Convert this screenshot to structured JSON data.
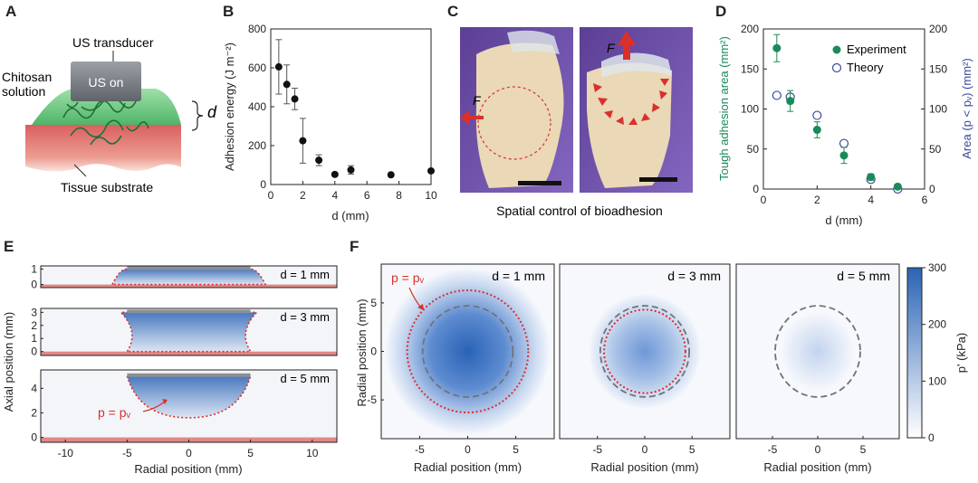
{
  "panels": {
    "a": "A",
    "b": "B",
    "c": "C",
    "d": "D",
    "e": "E",
    "f": "F"
  },
  "panel_a": {
    "transducer_label": "US transducer",
    "device_text": "US on",
    "solution_label_1": "Chitosan",
    "solution_label_2": "solution",
    "gap_label": "d",
    "substrate_label": "Tissue substrate",
    "colors": {
      "transducer": "#7b7f85",
      "gel": "#7dcf8d",
      "tissue": "#e16f6f",
      "fibers": "#1f6e3a"
    }
  },
  "panel_c": {
    "caption": "Spatial control of bioadhesion",
    "force_label": "F",
    "colors": {
      "glove": "#6c4fa3",
      "tissue": "#e9d6b3",
      "arrow": "#d9302c"
    }
  },
  "chart_data": [
    {
      "id": "B",
      "type": "scatter",
      "xlabel": "d (mm)",
      "ylabel": "Adhesion energy (J m⁻²)",
      "xlim": [
        0,
        10
      ],
      "ylim": [
        0,
        800
      ],
      "xticks": [
        0,
        2,
        4,
        6,
        8,
        10
      ],
      "yticks": [
        0,
        200,
        400,
        600,
        800
      ],
      "points": [
        {
          "x": 0.5,
          "y": 605,
          "err": 140
        },
        {
          "x": 1.0,
          "y": 515,
          "err": 100
        },
        {
          "x": 1.5,
          "y": 440,
          "err": 55
        },
        {
          "x": 2.0,
          "y": 225,
          "err": 115
        },
        {
          "x": 3.0,
          "y": 125,
          "err": 28
        },
        {
          "x": 4.0,
          "y": 52,
          "err": 8
        },
        {
          "x": 5.0,
          "y": 75,
          "err": 22
        },
        {
          "x": 7.5,
          "y": 50,
          "err": 5
        },
        {
          "x": 10.0,
          "y": 70,
          "err": 4
        }
      ]
    },
    {
      "id": "D",
      "type": "scatter",
      "xlabel": "d (mm)",
      "ylabel_left": "Tough adhesion area (mm²)",
      "ylabel_right": "Area (p < pᵥ) (mm²)",
      "xlim": [
        0,
        6
      ],
      "ylim": [
        0,
        200
      ],
      "xticks": [
        0,
        2,
        4,
        6
      ],
      "yticks": [
        0,
        50,
        100,
        150,
        200
      ],
      "legend_position": "top-right",
      "series": [
        {
          "name": "Experiment",
          "marker": "filled",
          "color": "#1a8a5a",
          "x": [
            0.5,
            1,
            2,
            3,
            4,
            5
          ],
          "y": [
            176,
            110,
            74,
            42,
            15,
            3
          ],
          "err": [
            17,
            13,
            10,
            10,
            4,
            3
          ]
        },
        {
          "name": "Theory",
          "marker": "open",
          "color": "#3b4a9c",
          "x": [
            0.5,
            1,
            2,
            3,
            4,
            5
          ],
          "y": [
            117,
            115,
            92,
            57,
            12,
            0
          ]
        }
      ]
    },
    {
      "id": "E",
      "type": "heatmap",
      "xlabel": "Radial position (mm)",
      "ylabel": "Axial position (mm)",
      "xlim": [
        -12,
        12
      ],
      "xticks": [
        -10,
        -5,
        0,
        5,
        10
      ],
      "annotation": "p = pᵥ",
      "subplots": [
        {
          "label": "d = 1 mm",
          "ylim": [
            -0.2,
            1.2
          ],
          "yticks": [
            0,
            1
          ]
        },
        {
          "label": "d = 3 mm",
          "ylim": [
            -0.3,
            3.3
          ],
          "yticks": [
            0,
            1,
            2,
            3
          ]
        },
        {
          "label": "d = 5 mm",
          "ylim": [
            -0.4,
            5.5
          ],
          "yticks": [
            0,
            2,
            4
          ]
        }
      ]
    },
    {
      "id": "F",
      "type": "heatmap",
      "xlabel": "Radial position (mm)",
      "ylabel": "Radial position (mm)",
      "xlim": [
        -9,
        9
      ],
      "ylim": [
        -9,
        9
      ],
      "xticks": [
        -5,
        0,
        5
      ],
      "yticks": [
        -5,
        0,
        5
      ],
      "annotation": "p = pᵥ",
      "colorbar": {
        "label": "p' (kPa)",
        "ticks": [
          0,
          100,
          200,
          300
        ],
        "min_color": "#ffffff",
        "max_color": "#2a63b5"
      },
      "subplots": [
        {
          "label": "d = 1 mm",
          "pressure_radius": 6.3,
          "dashed_radius": 4.7,
          "peak": "high"
        },
        {
          "label": "d = 3 mm",
          "pressure_radius": 4.3,
          "dashed_radius": 4.7,
          "peak": "medium"
        },
        {
          "label": "d = 5 mm",
          "pressure_radius": 0,
          "dashed_radius": 4.7,
          "peak": "low"
        }
      ]
    }
  ]
}
